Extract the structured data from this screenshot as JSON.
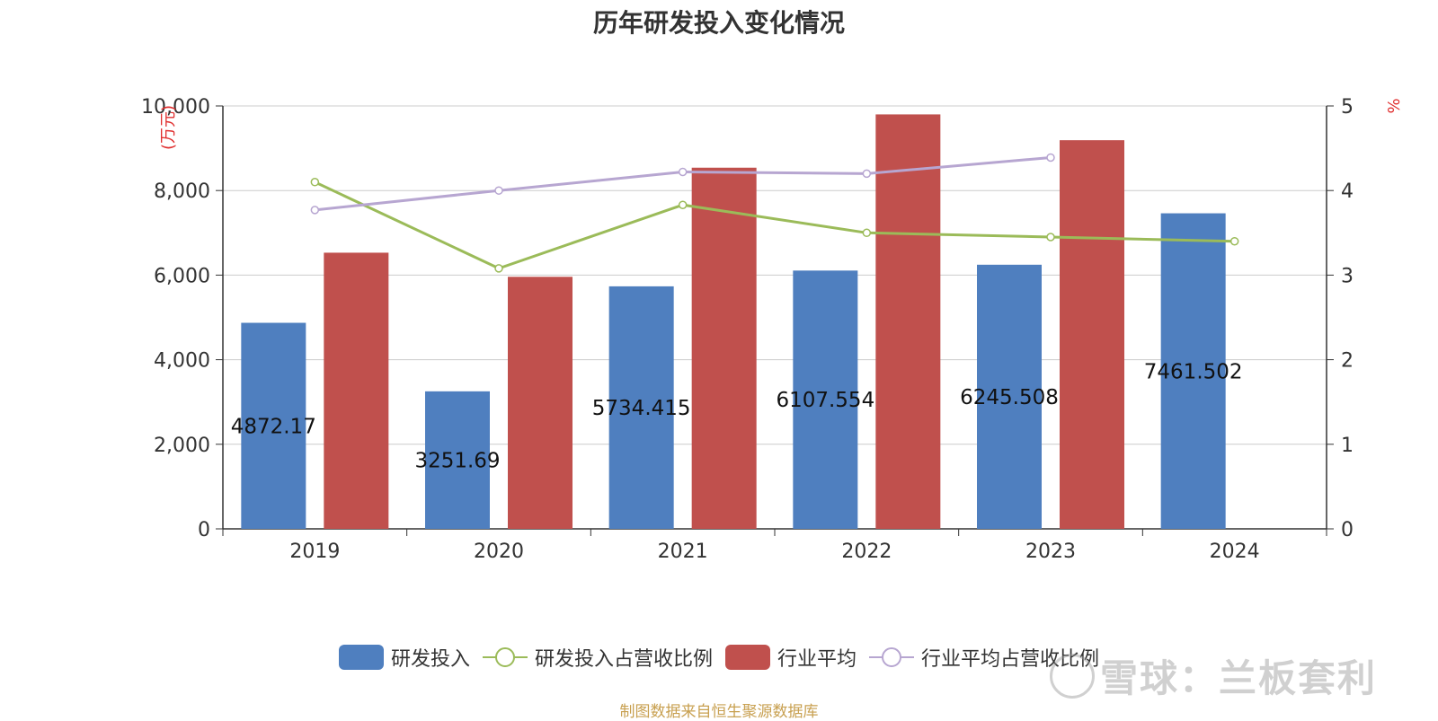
{
  "title": "历年研发投入变化情况",
  "left_unit": "(万元)",
  "right_unit": "%",
  "source": "制图数据来自恒生聚源数据库",
  "watermark": "雪球：兰板套利",
  "colors": {
    "rd": "#4f7fbf",
    "rd_ratio": "#9bbb59",
    "industry": "#c0504d",
    "industry_ratio": "#b7a6d1",
    "source": "#c8a050",
    "unit": "#e03030"
  },
  "legend": [
    {
      "label": "研发投入",
      "kind": "rect",
      "color": "#4f7fbf"
    },
    {
      "label": "研发投入占营收比例",
      "kind": "line",
      "color": "#9bbb59"
    },
    {
      "label": "行业平均",
      "kind": "rect",
      "color": "#c0504d"
    },
    {
      "label": "行业平均占营收比例",
      "kind": "line",
      "color": "#b7a6d1"
    }
  ],
  "chart_data": {
    "type": "bar",
    "categories": [
      "2019",
      "2020",
      "2021",
      "2022",
      "2023",
      "2024"
    ],
    "y_left": {
      "min": 0,
      "max": 10000,
      "ticks": [
        "0",
        "2,000",
        "4,000",
        "6,000",
        "8,000",
        "10,000"
      ]
    },
    "y_right": {
      "min": 0,
      "max": 5,
      "ticks": [
        "0",
        "1",
        "2",
        "3",
        "4",
        "5"
      ]
    },
    "grid": true,
    "legend_position": "bottom",
    "series": [
      {
        "name": "研发投入",
        "type": "bar",
        "axis": "left",
        "values": [
          4872.17,
          3251.69,
          5734.415,
          6107.554,
          6245.508,
          7461.502
        ],
        "labels": [
          "4872.17",
          "3251.69",
          "5734.415",
          "6107.554",
          "6245.508",
          "7461.502"
        ]
      },
      {
        "name": "行业平均",
        "type": "bar",
        "axis": "left",
        "values": [
          6530,
          5960,
          8540,
          9800,
          9190,
          null
        ]
      },
      {
        "name": "研发投入占营收比例",
        "type": "line",
        "axis": "right",
        "values": [
          4.1,
          3.08,
          3.83,
          3.5,
          3.45,
          3.4
        ]
      },
      {
        "name": "行业平均占营收比例",
        "type": "line",
        "axis": "right",
        "values": [
          3.77,
          4.0,
          4.22,
          4.2,
          4.39,
          null
        ]
      }
    ]
  }
}
